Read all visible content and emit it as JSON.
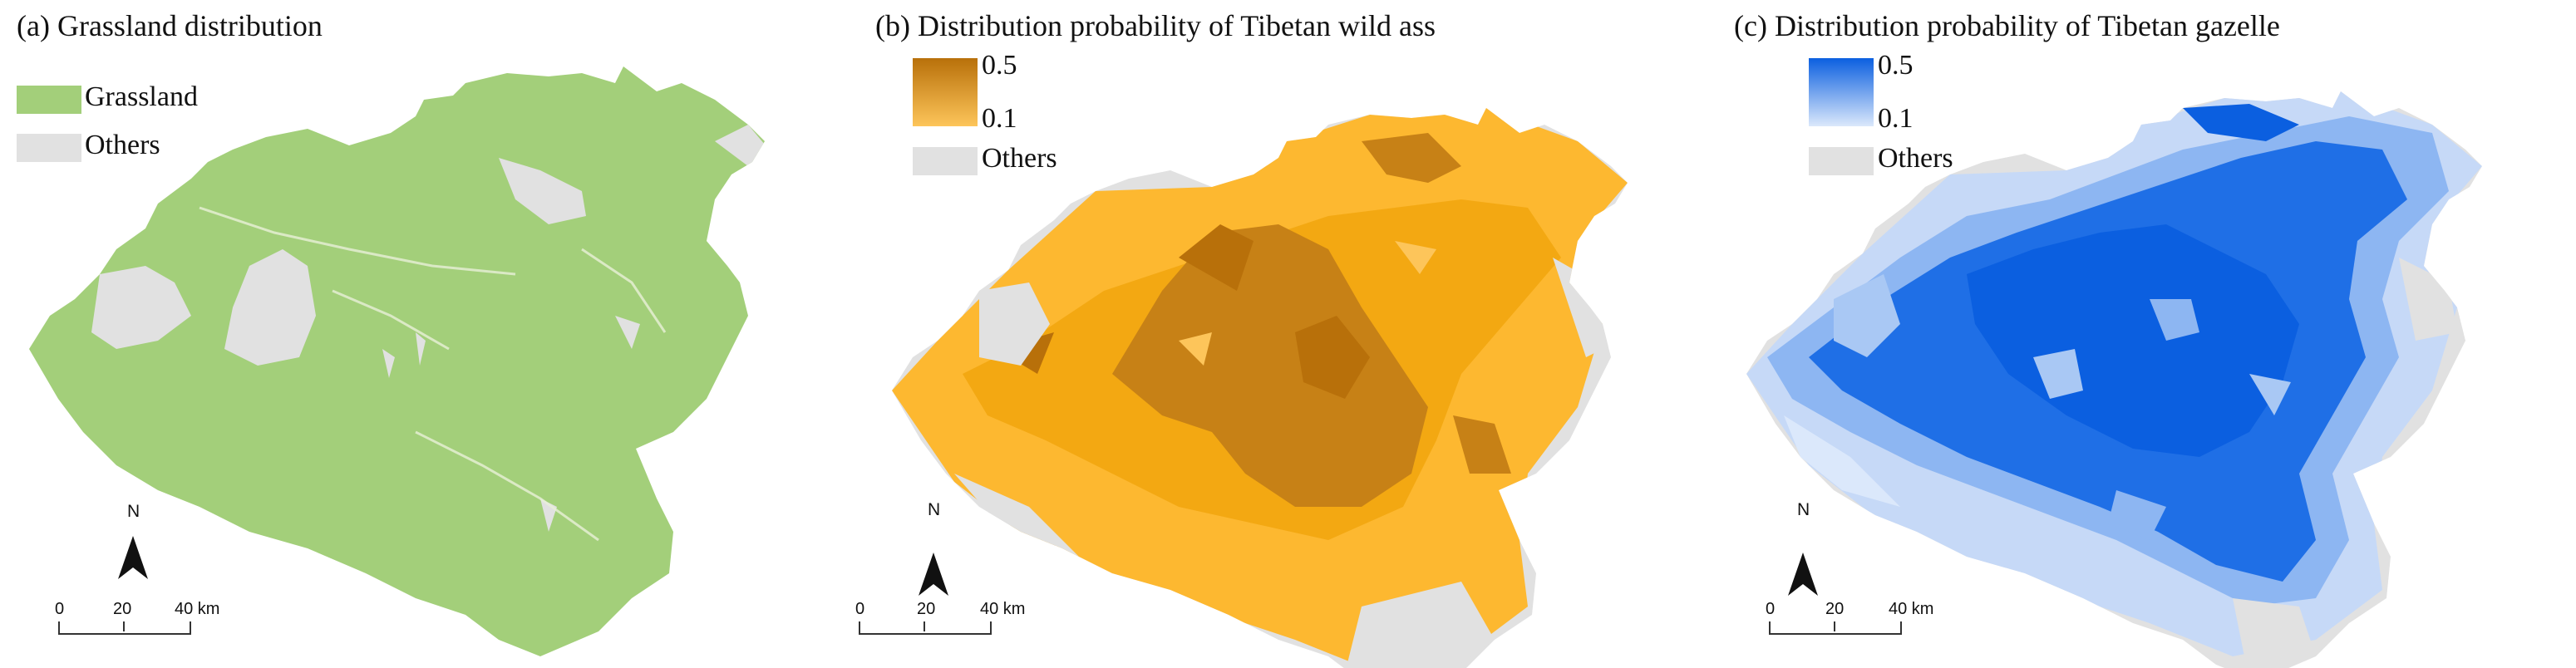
{
  "panels": [
    {
      "title": "(a) Grassland distribution",
      "legend": [
        {
          "label": "Grassland",
          "color": "#a3cf7a"
        },
        {
          "label": "Others",
          "color": "#e1e1e1"
        }
      ],
      "north": "N",
      "scale": {
        "zero": "0",
        "mid": "20",
        "end": "40 km"
      }
    },
    {
      "title": "(b) Distribution probability of Tibetan wild ass",
      "ramp": {
        "max": "0.5",
        "min": "0.1",
        "color_high": "#b8700a",
        "color_low": "#fdc55a"
      },
      "legend": [
        {
          "label": "Others",
          "color": "#e1e1e1"
        }
      ],
      "north": "N",
      "scale": {
        "zero": "0",
        "mid": "20",
        "end": "40 km"
      }
    },
    {
      "title": "(c) Distribution probability of  Tibetan gazelle",
      "ramp": {
        "max": "0.5",
        "min": "0.1",
        "color_high": "#0b5fe0",
        "color_low": "#dbe8fb"
      },
      "legend": [
        {
          "label": "Others",
          "color": "#e1e1e1"
        }
      ],
      "north": "N",
      "scale": {
        "zero": "0",
        "mid": "20",
        "end": "40 km"
      }
    }
  ]
}
